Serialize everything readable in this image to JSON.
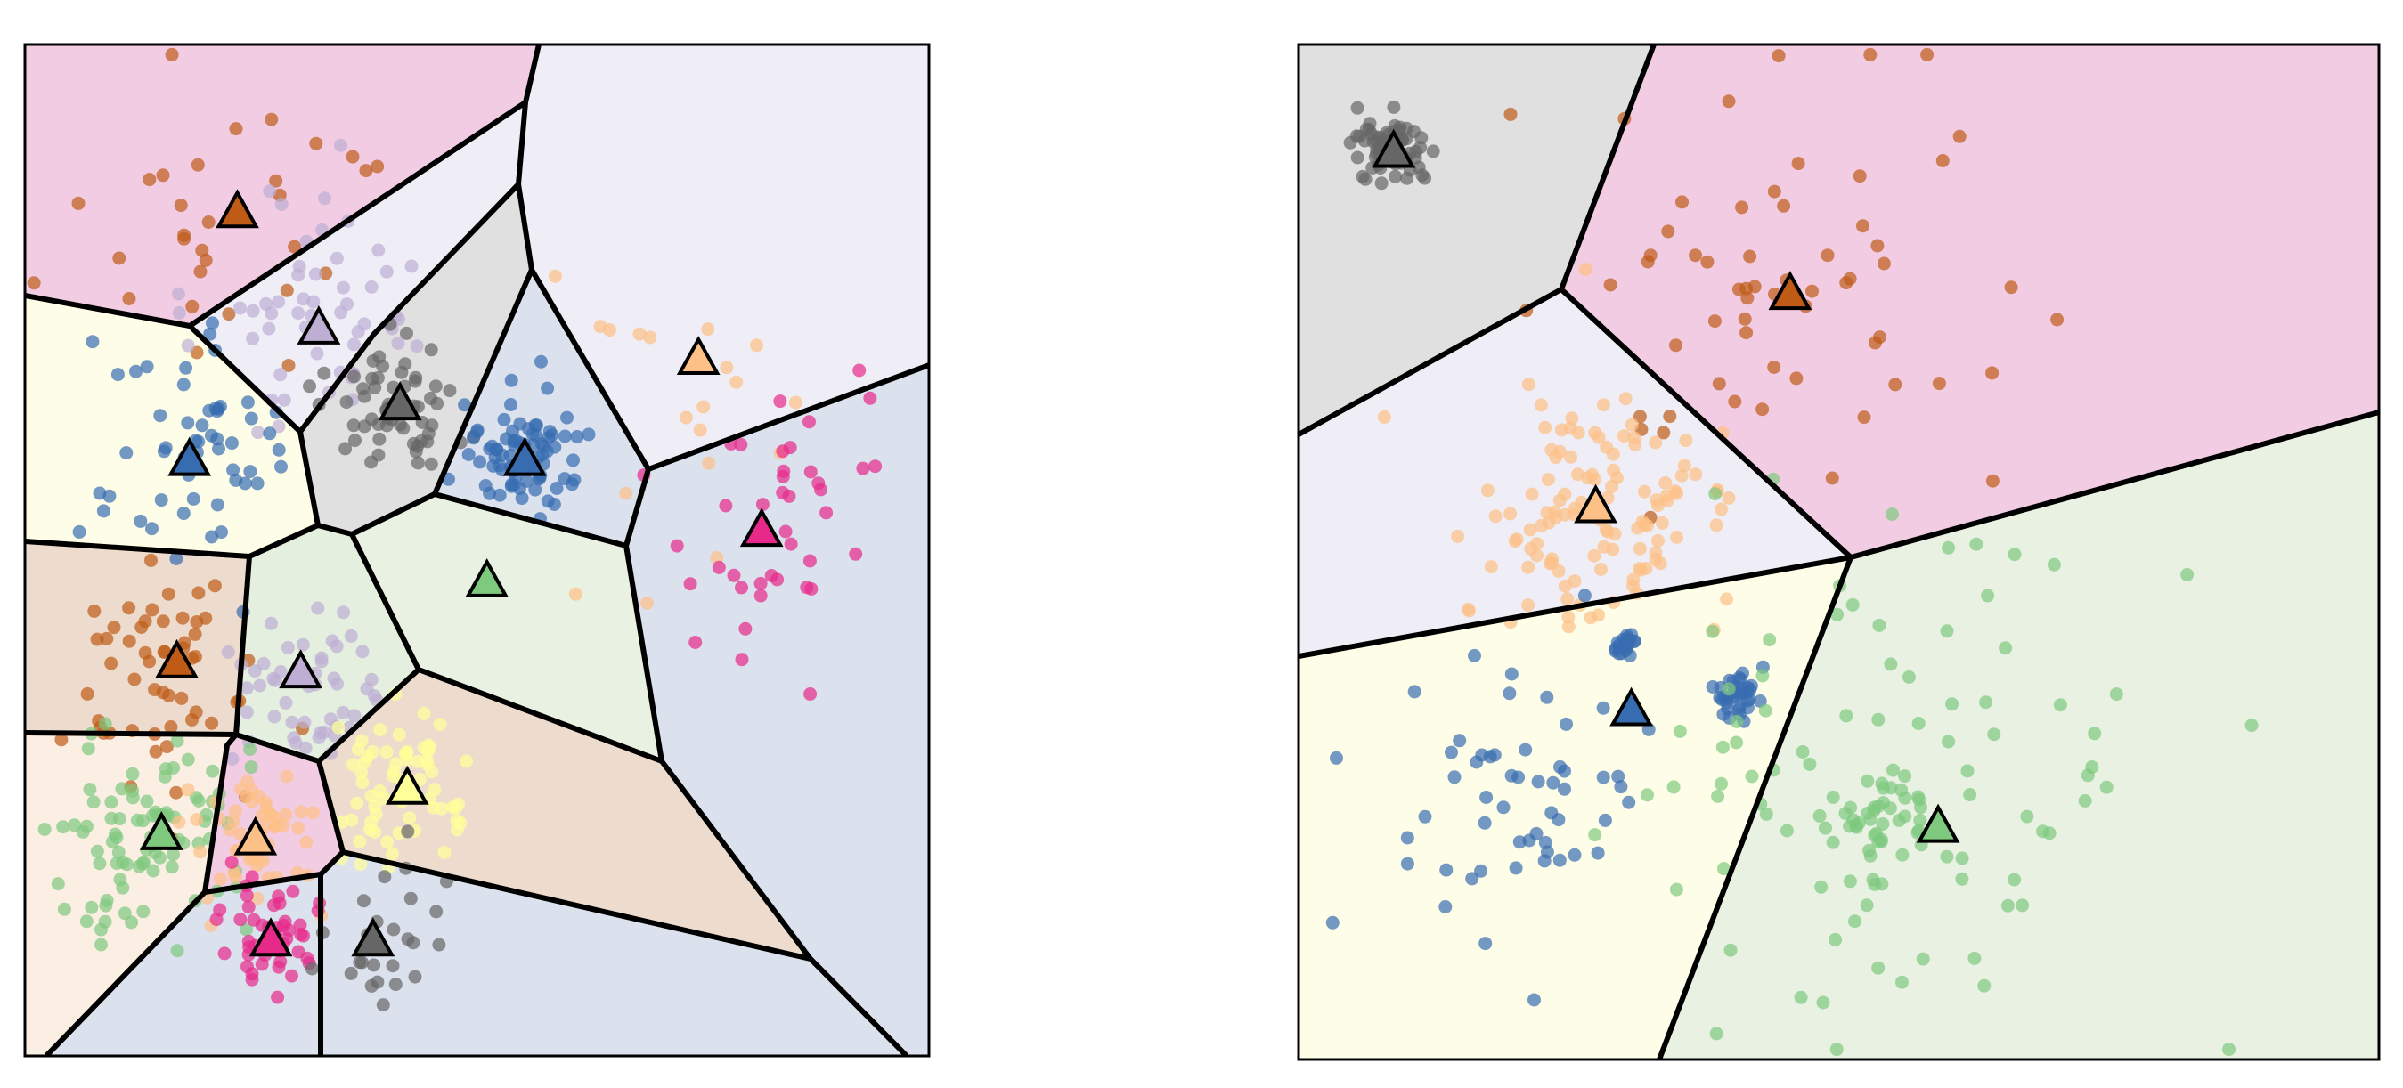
{
  "figure": {
    "description": ""
  },
  "chart_data": [
    {
      "type": "scatter",
      "subtype": "voronoi-clustering",
      "title": "",
      "xlabel": "",
      "ylabel": "",
      "xlim": [
        0,
        1
      ],
      "ylim": [
        0,
        1
      ],
      "ticks": "none",
      "grid": false,
      "legend": "none",
      "cells": [
        {
          "fill": "#f2cce3",
          "sites": "pink"
        },
        {
          "fill": "#efedf5",
          "sites": "lavender-light"
        },
        {
          "fill": "#fefde8",
          "sites": "cream"
        },
        {
          "fill": "#efedf5",
          "sites": "lavender"
        },
        {
          "fill": "#e0e0e0",
          "sites": "gray"
        },
        {
          "fill": "#dbe2ee",
          "sites": "blue"
        },
        {
          "fill": "#eddccd",
          "sites": "tan"
        },
        {
          "fill": "#e8f1e2",
          "sites": "green"
        },
        {
          "fill": "#e5efe0",
          "sites": "green-light"
        },
        {
          "fill": "#fbefe4",
          "sites": "peach"
        },
        {
          "fill": "#f2cce3",
          "sites": "pink-bottom"
        },
        {
          "fill": "#eddccd",
          "sites": "tan-bottom"
        },
        {
          "fill": "#dbe2ee",
          "sites": "blue-right"
        }
      ],
      "centers": [
        {
          "x": 0.235,
          "y": 0.835,
          "color": "#bf5b17"
        },
        {
          "x": 0.325,
          "y": 0.72,
          "color": "#beaed4"
        },
        {
          "x": 0.415,
          "y": 0.645,
          "color": "#666666"
        },
        {
          "x": 0.182,
          "y": 0.59,
          "color": "#386cb0"
        },
        {
          "x": 0.553,
          "y": 0.59,
          "color": "#386cb0"
        },
        {
          "x": 0.745,
          "y": 0.69,
          "color": "#fdc086"
        },
        {
          "x": 0.815,
          "y": 0.52,
          "color": "#e7298a"
        },
        {
          "x": 0.511,
          "y": 0.47,
          "color": "#7fc97f"
        },
        {
          "x": 0.168,
          "y": 0.39,
          "color": "#bf5b17"
        },
        {
          "x": 0.305,
          "y": 0.38,
          "color": "#beaed4"
        },
        {
          "x": 0.423,
          "y": 0.265,
          "color": "#ffff99"
        },
        {
          "x": 0.151,
          "y": 0.22,
          "color": "#7fc97f"
        },
        {
          "x": 0.255,
          "y": 0.215,
          "color": "#fdc086"
        },
        {
          "x": 0.272,
          "y": 0.115,
          "color": "#e7298a"
        },
        {
          "x": 0.385,
          "y": 0.115,
          "color": "#666666"
        }
      ],
      "clusters": [
        {
          "color": "#bf5b17",
          "cx": 0.22,
          "cy": 0.85,
          "spread": 0.09,
          "n": 30
        },
        {
          "color": "#beaed4",
          "cx": 0.31,
          "cy": 0.73,
          "spread": 0.06,
          "n": 55
        },
        {
          "color": "#666666",
          "cx": 0.41,
          "cy": 0.64,
          "spread": 0.035,
          "n": 60
        },
        {
          "color": "#386cb0",
          "cx": 0.17,
          "cy": 0.6,
          "spread": 0.055,
          "n": 55
        },
        {
          "color": "#386cb0",
          "cx": 0.55,
          "cy": 0.59,
          "spread": 0.03,
          "n": 80
        },
        {
          "color": "#fdc086",
          "cx": 0.72,
          "cy": 0.68,
          "spread": 0.09,
          "n": 20
        },
        {
          "color": "#e7298a",
          "cx": 0.82,
          "cy": 0.52,
          "spread": 0.07,
          "n": 40
        },
        {
          "color": "#bf5b17",
          "cx": 0.16,
          "cy": 0.39,
          "spread": 0.055,
          "n": 55
        },
        {
          "color": "#beaed4",
          "cx": 0.31,
          "cy": 0.36,
          "spread": 0.045,
          "n": 50
        },
        {
          "color": "#ffff99",
          "cx": 0.42,
          "cy": 0.27,
          "spread": 0.04,
          "n": 70
        },
        {
          "color": "#7fc97f",
          "cx": 0.14,
          "cy": 0.22,
          "spread": 0.055,
          "n": 90
        },
        {
          "color": "#fdc086",
          "cx": 0.25,
          "cy": 0.22,
          "spread": 0.035,
          "n": 55
        },
        {
          "color": "#e7298a",
          "cx": 0.27,
          "cy": 0.12,
          "spread": 0.025,
          "n": 50
        },
        {
          "color": "#666666",
          "cx": 0.38,
          "cy": 0.12,
          "spread": 0.045,
          "n": 25
        }
      ]
    },
    {
      "type": "scatter",
      "subtype": "voronoi-clustering",
      "title": "",
      "xlabel": "",
      "ylabel": "",
      "xlim": [
        0,
        1
      ],
      "ylim": [
        0,
        1
      ],
      "ticks": "none",
      "grid": false,
      "legend": "none",
      "cells": [
        {
          "fill": "#e0e0e0",
          "sites": "gray"
        },
        {
          "fill": "#f2cce3",
          "sites": "brown"
        },
        {
          "fill": "#efedf5",
          "sites": "peach"
        },
        {
          "fill": "#fefde8",
          "sites": "blue"
        },
        {
          "fill": "#e8f1e2",
          "sites": "green"
        }
      ],
      "centers": [
        {
          "x": 0.088,
          "y": 0.895,
          "color": "#666666"
        },
        {
          "x": 0.455,
          "y": 0.755,
          "color": "#bf5b17"
        },
        {
          "x": 0.275,
          "y": 0.545,
          "color": "#fdc086"
        },
        {
          "x": 0.308,
          "y": 0.345,
          "color": "#386cb0"
        },
        {
          "x": 0.592,
          "y": 0.23,
          "color": "#7fc97f"
        }
      ],
      "clusters": [
        {
          "color": "#666666",
          "cx": 0.088,
          "cy": 0.9,
          "spread": 0.018,
          "n": 70
        },
        {
          "color": "#bf5b17",
          "cx": 0.44,
          "cy": 0.76,
          "spread": 0.11,
          "n": 60
        },
        {
          "color": "#fdc086",
          "cx": 0.28,
          "cy": 0.54,
          "spread": 0.06,
          "n": 120
        },
        {
          "color": "#386cb0",
          "cx": 0.21,
          "cy": 0.25,
          "spread": 0.07,
          "n": 55
        },
        {
          "color": "#386cb0",
          "cx": 0.3,
          "cy": 0.41,
          "spread": 0.006,
          "n": 20
        },
        {
          "color": "#386cb0",
          "cx": 0.408,
          "cy": 0.36,
          "spread": 0.012,
          "n": 35
        },
        {
          "color": "#7fc97f",
          "cx": 0.54,
          "cy": 0.25,
          "spread": 0.14,
          "n": 90
        },
        {
          "color": "#7fc97f",
          "cx": 0.54,
          "cy": 0.24,
          "spread": 0.025,
          "n": 40
        }
      ]
    }
  ]
}
